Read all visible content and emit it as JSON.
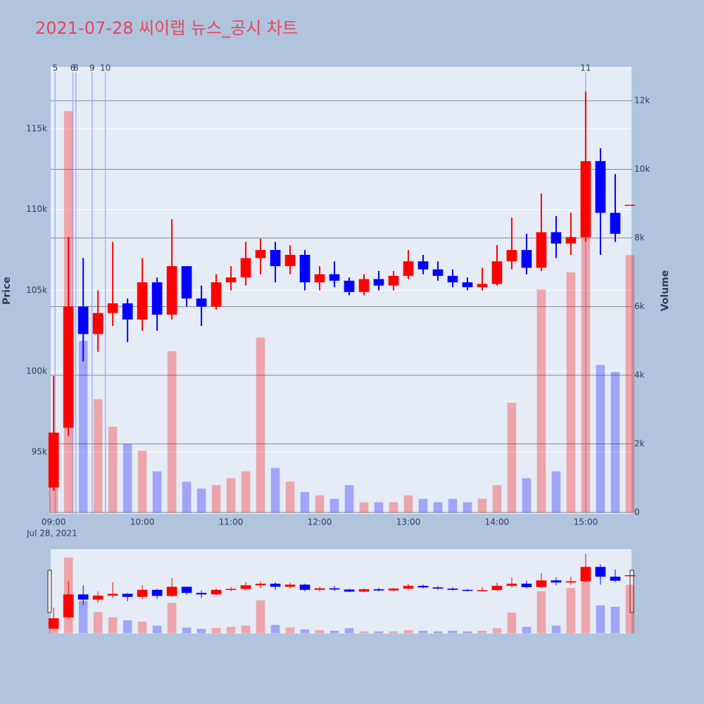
{
  "chart_data": {
    "type": "candlestick",
    "title": "2021-07-28 씨이랩 뉴스_공시 차트",
    "y_label": "Price",
    "y2_label": "Volume",
    "x_date_label": "Jul 28, 2021",
    "up_color": "#ff0000",
    "down_color": "#0000ff",
    "x": [
      "09:00",
      "09:10",
      "09:20",
      "09:30",
      "09:40",
      "09:50",
      "10:00",
      "10:10",
      "10:20",
      "10:30",
      "10:40",
      "10:50",
      "11:00",
      "11:10",
      "11:20",
      "11:30",
      "11:40",
      "11:50",
      "12:00",
      "12:10",
      "12:20",
      "12:30",
      "12:40",
      "12:50",
      "13:00",
      "13:10",
      "13:20",
      "13:30",
      "13:40",
      "13:50",
      "14:00",
      "14:10",
      "14:20",
      "14:30",
      "14:40",
      "14:50",
      "15:00",
      "15:10",
      "15:20",
      "15:30"
    ],
    "open": [
      92800,
      96500,
      104000,
      102300,
      103600,
      104200,
      103200,
      105500,
      103500,
      106500,
      104500,
      104000,
      105500,
      105800,
      107000,
      107500,
      106500,
      107200,
      105500,
      106000,
      105600,
      104900,
      105700,
      105300,
      105900,
      106800,
      106300,
      105900,
      105500,
      105200,
      105400,
      106800,
      107500,
      106400,
      108600,
      107900,
      108300,
      113000,
      109800,
      110300
    ],
    "high": [
      99700,
      108300,
      107000,
      105000,
      108000,
      104500,
      107000,
      105800,
      109400,
      106500,
      105300,
      106000,
      106500,
      108000,
      108200,
      108000,
      107800,
      107500,
      106500,
      106800,
      105800,
      106000,
      106200,
      106200,
      107500,
      107200,
      106800,
      106300,
      105800,
      106400,
      107800,
      109500,
      108500,
      111000,
      109600,
      109800,
      117300,
      113800,
      112200,
      110300
    ],
    "low": [
      92600,
      96000,
      100600,
      101200,
      102800,
      101800,
      102500,
      102500,
      103200,
      104000,
      102800,
      103800,
      105000,
      105300,
      106000,
      105500,
      106000,
      105000,
      105000,
      105200,
      104700,
      104700,
      105000,
      105000,
      105700,
      106000,
      105600,
      105200,
      105000,
      105000,
      105300,
      106300,
      106000,
      106200,
      107000,
      107200,
      108000,
      107200,
      108000,
      110300
    ],
    "close": [
      96200,
      104000,
      102300,
      103600,
      104200,
      103200,
      105500,
      103500,
      106500,
      104500,
      104000,
      105500,
      105800,
      107000,
      107500,
      106500,
      107200,
      105500,
      106000,
      105600,
      104900,
      105700,
      105300,
      105900,
      106800,
      106300,
      105900,
      105500,
      105200,
      105400,
      106800,
      107500,
      106400,
      108600,
      107900,
      108300,
      113000,
      109800,
      108500,
      110300
    ],
    "volume": [
      1600,
      11700,
      5000,
      3300,
      2500,
      2000,
      1800,
      1200,
      4700,
      900,
      700,
      800,
      1000,
      1200,
      5100,
      1300,
      900,
      600,
      500,
      400,
      800,
      300,
      300,
      300,
      500,
      400,
      300,
      400,
      300,
      400,
      800,
      3200,
      1000,
      6500,
      1200,
      7000,
      10000,
      4300,
      4100,
      7500
    ],
    "events": [
      {
        "label": "5",
        "x": "09:01"
      },
      {
        "label": "6",
        "x": "09:13"
      },
      {
        "label": "8",
        "x": "09:15"
      },
      {
        "label": "9",
        "x": "09:26"
      },
      {
        "label": "10",
        "x": "09:35"
      },
      {
        "label": "11",
        "x": "15:00"
      }
    ],
    "xlim": [
      "08:58",
      "15:31"
    ],
    "xticks": [
      "09:00",
      "10:00",
      "11:00",
      "12:00",
      "13:00",
      "14:00",
      "15:00"
    ],
    "ylim": [
      91170,
      118830
    ],
    "yticks": [
      {
        "value": 95000,
        "label": "95k"
      },
      {
        "value": 100000,
        "label": "100k"
      },
      {
        "value": 105000,
        "label": "105k"
      },
      {
        "value": 110000,
        "label": "110k"
      },
      {
        "value": 115000,
        "label": "115k"
      }
    ],
    "y2lim": [
      -40,
      12985
    ],
    "y2ticks": [
      0,
      {
        "value": 2000,
        "label": "2k"
      },
      {
        "value": 4000,
        "label": "4k"
      },
      {
        "value": 6000,
        "label": "6k"
      },
      {
        "value": 8000,
        "label": "8k"
      },
      {
        "value": 10000,
        "label": "10k"
      },
      {
        "value": 12000,
        "label": "12k"
      }
    ]
  }
}
